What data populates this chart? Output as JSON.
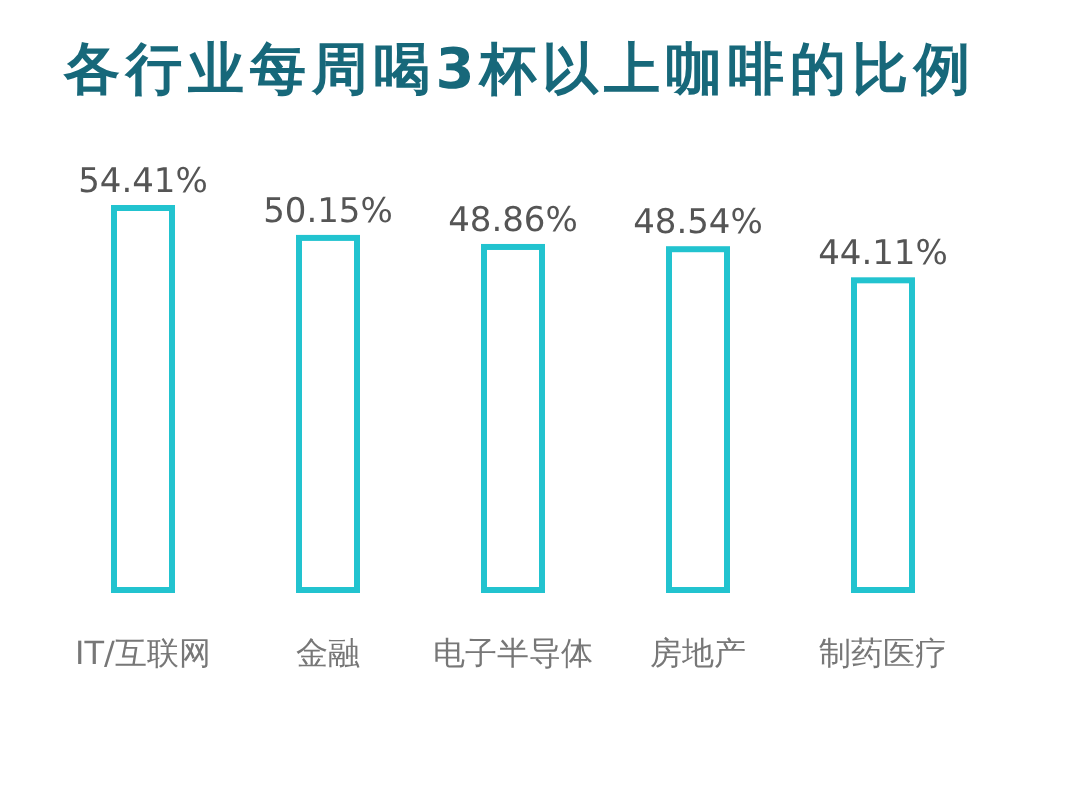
{
  "chart_data": {
    "type": "bar",
    "title": "各行业每周喝3杯以上咖啡的比例",
    "categories": [
      "IT/互联网",
      "金融",
      "电子半导体",
      "房地产",
      "制药医疗"
    ],
    "values": [
      54.41,
      50.15,
      48.86,
      48.54,
      44.11
    ],
    "color": "#22c3cf",
    "value_labels": [
      "54.41%",
      "50.15%",
      "48.86%",
      "48.54%",
      "44.11%"
    ]
  }
}
